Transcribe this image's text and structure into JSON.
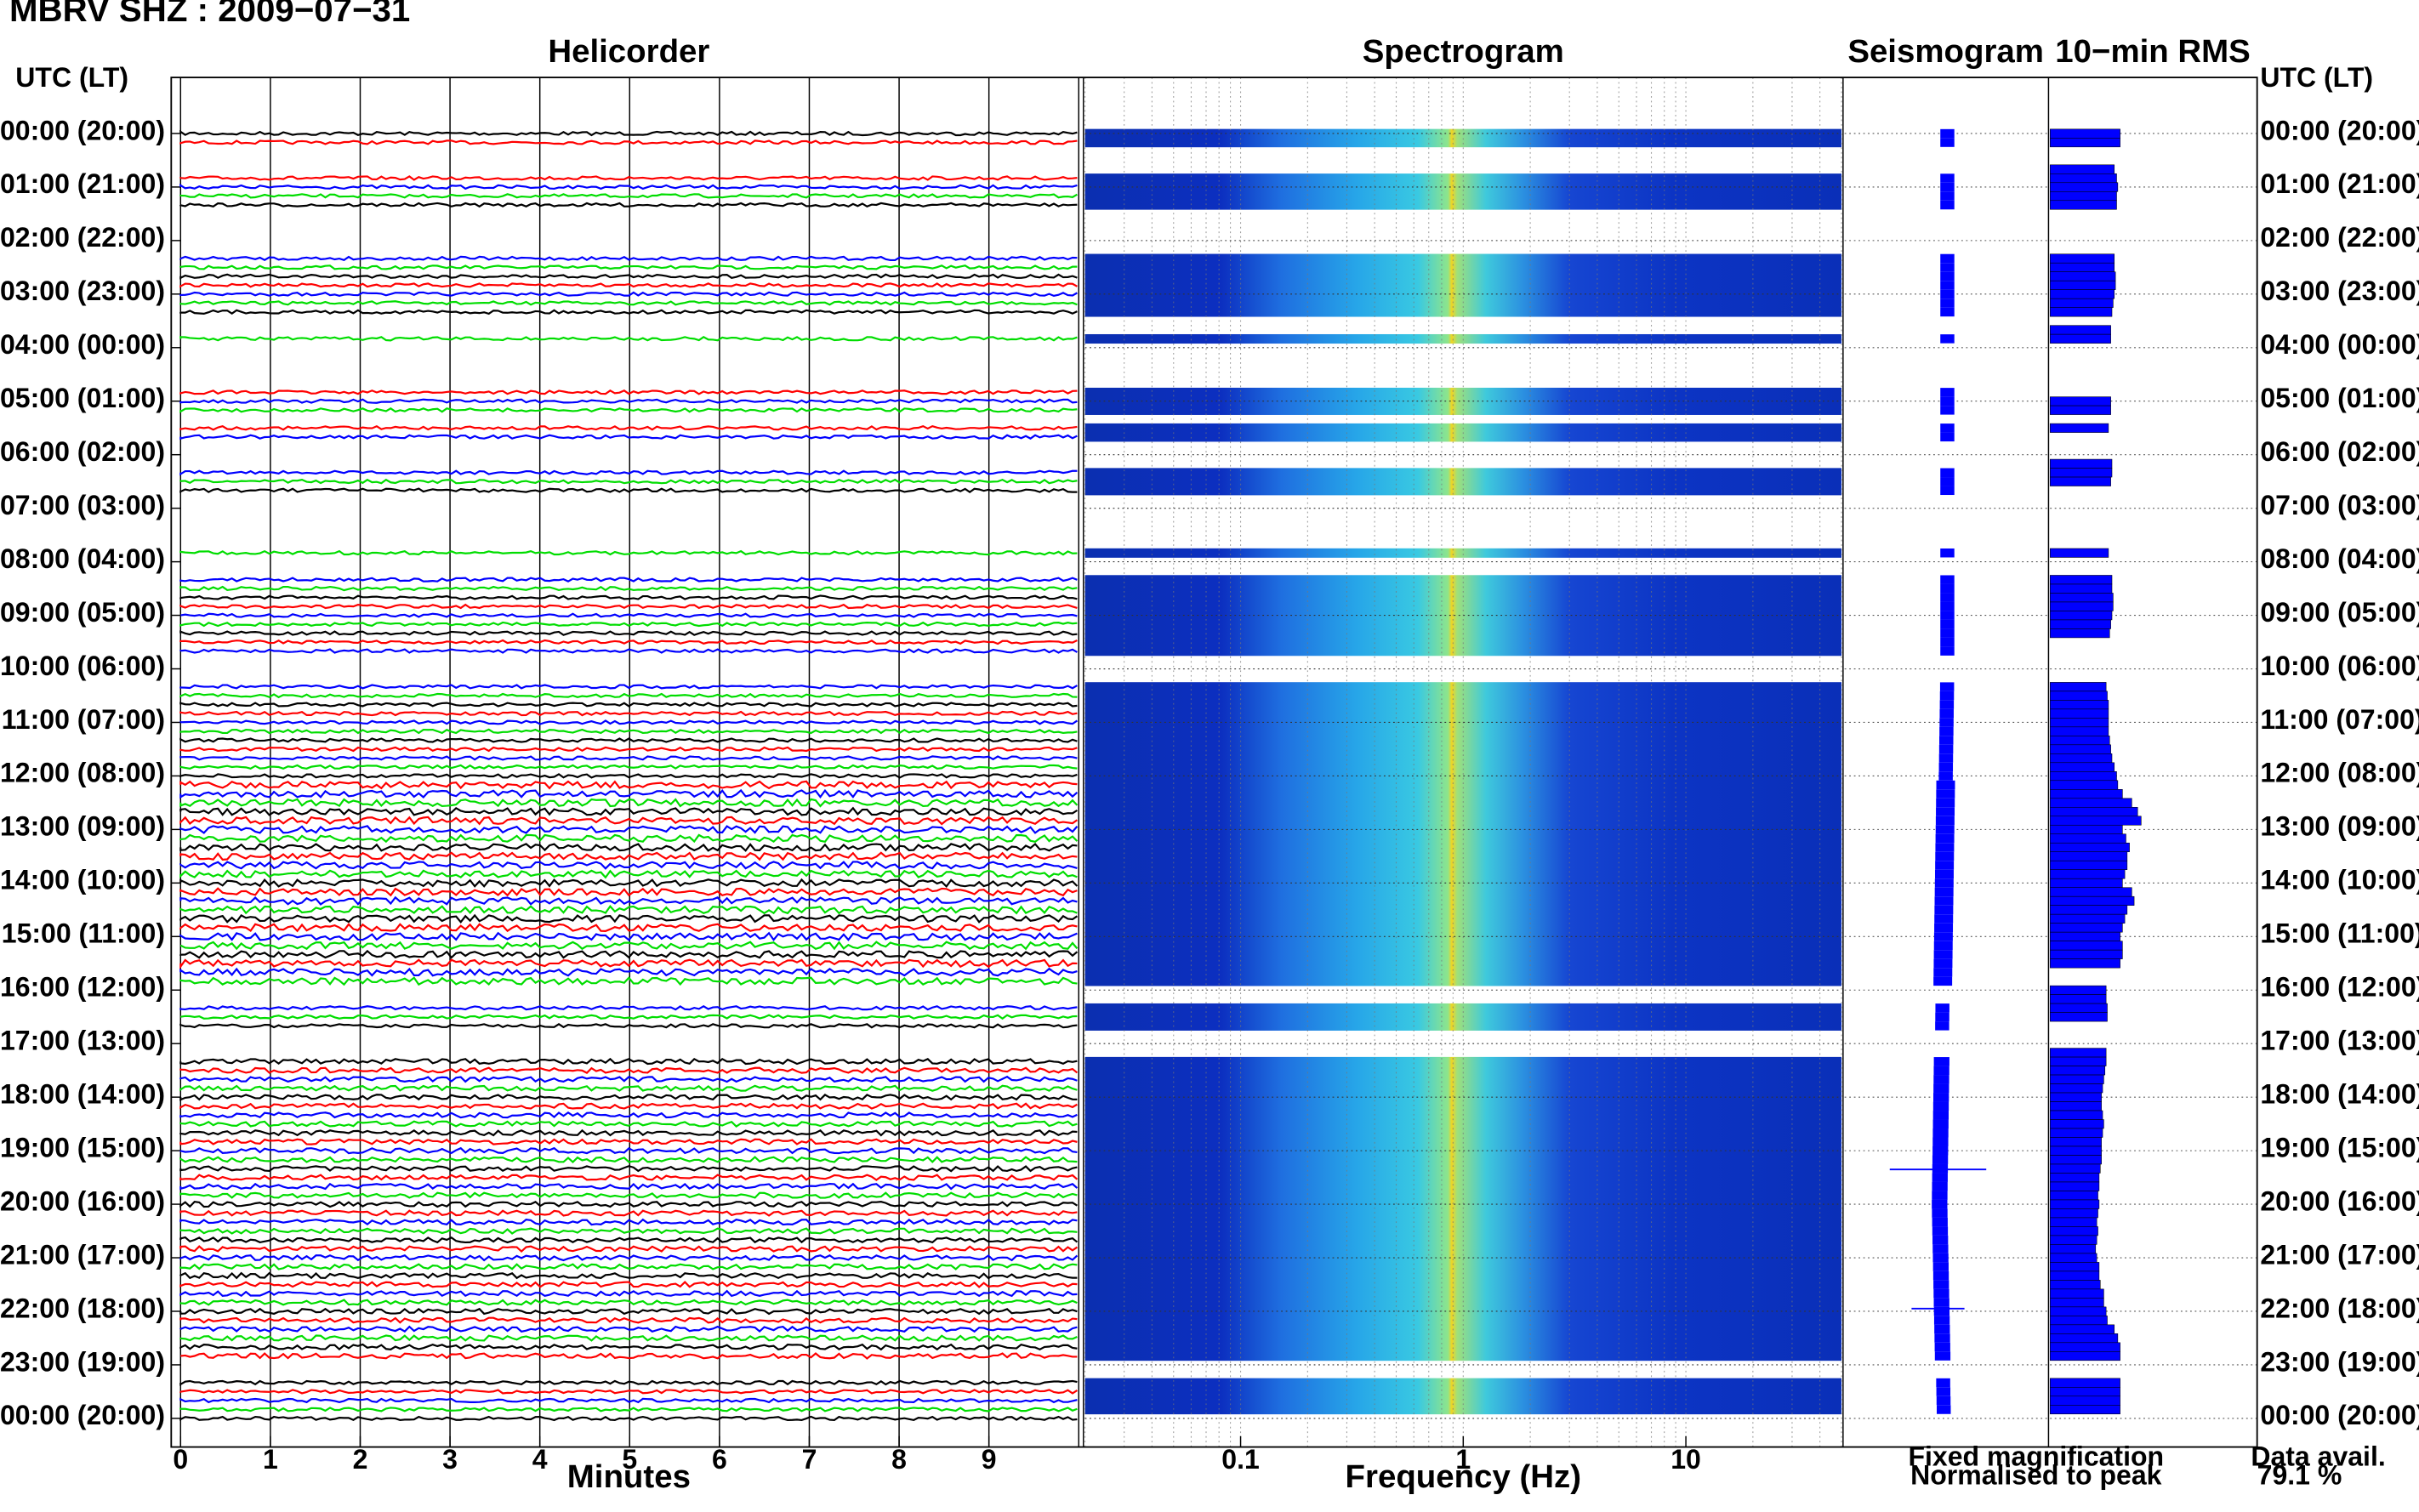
{
  "header": {
    "station_title": "MBRV SHZ : 2009−07−31",
    "utc_label_left": "UTC (LT)",
    "utc_label_right": "UTC (LT)"
  },
  "panels": {
    "helicorder_title": "Helicorder",
    "spectrogram_title": "Spectrogram",
    "seismogram_title": "Seismogram",
    "rms_title": "10−min RMS"
  },
  "axes": {
    "minutes_label": "Minutes",
    "frequency_label": "Frequency (Hz)",
    "minute_ticks": [
      "0",
      "1",
      "2",
      "3",
      "4",
      "5",
      "6",
      "7",
      "8",
      "9"
    ],
    "frequency_ticks": [
      "0.1",
      "1",
      "10"
    ],
    "hour_labels": [
      "00:00 (20:00)",
      "01:00 (21:00)",
      "02:00 (22:00)",
      "03:00 (23:00)",
      "04:00 (00:00)",
      "05:00 (01:00)",
      "06:00 (02:00)",
      "07:00 (03:00)",
      "08:00 (04:00)",
      "09:00 (05:00)",
      "10:00 (06:00)",
      "11:00 (07:00)",
      "12:00 (08:00)",
      "13:00 (09:00)",
      "14:00 (10:00)",
      "15:00 (11:00)",
      "16:00 (12:00)",
      "17:00 (13:00)",
      "18:00 (14:00)",
      "19:00 (15:00)",
      "20:00 (16:00)",
      "21:00 (17:00)",
      "22:00 (18:00)",
      "23:00 (19:00)",
      "00:00 (20:00)"
    ]
  },
  "legend": {
    "fixed_magnification": "Fixed magnification",
    "normalised_to_peak": "Normalised to peak",
    "data_avail_label": "Data avail.",
    "data_avail_value": "79.1 %"
  },
  "colors": {
    "trace_cycle": [
      "#000000",
      "#ff0000",
      "#0000ff",
      "#00dd00"
    ],
    "fixed_magnification": "#0000ff",
    "normalised_to_peak": "#ff0000",
    "spectrogram_background": "#0a2fb8",
    "rms_bar": "#0000ff"
  },
  "chart_data": {
    "type": "heatmap",
    "description_panels": [
      "helicorder",
      "spectrogram",
      "seismogram",
      "rms"
    ],
    "helicorder": {
      "minutes_per_line": 10,
      "minutes_range": [
        0,
        10
      ],
      "hours_range": [
        0,
        24
      ],
      "trace_color_cycle": [
        "black",
        "red",
        "blue",
        "green"
      ]
    },
    "spectrogram": {
      "frequency_scale": "log",
      "frequency_range_hz": [
        0.02,
        50
      ],
      "dominant_frequency_hz": 1
    },
    "data_gaps_hours": [
      [
        0.33,
        0.67
      ],
      [
        1.5,
        2.33
      ],
      [
        3.5,
        3.83
      ],
      [
        4.0,
        4.83
      ],
      [
        5.17,
        5.5
      ],
      [
        5.67,
        6.17
      ],
      [
        6.83,
        7.83
      ],
      [
        8.0,
        8.33
      ],
      [
        9.83,
        10.33
      ],
      [
        16.0,
        16.33
      ],
      [
        16.83,
        17.33
      ],
      [
        23.0,
        23.33
      ]
    ],
    "rms_10min": {
      "x_unit": "relative",
      "values": [
        0.6,
        0.6,
        0.0,
        0.0,
        0.55,
        0.57,
        0.58,
        0.57,
        0.57,
        0.0,
        0.0,
        0.0,
        0.0,
        0.0,
        0.55,
        0.55,
        0.56,
        0.56,
        0.55,
        0.54,
        0.53,
        0.0,
        0.52,
        0.52,
        0.0,
        0.0,
        0.0,
        0.0,
        0.0,
        0.0,
        0.52,
        0.52,
        0.0,
        0.5,
        0.0,
        0.0,
        0.0,
        0.53,
        0.53,
        0.52,
        0.0,
        0.0,
        0.0,
        0.0,
        0.0,
        0.0,
        0.0,
        0.5,
        0.0,
        0.0,
        0.53,
        0.53,
        0.54,
        0.54,
        0.53,
        0.52,
        0.51,
        0.0,
        0.0,
        0.0,
        0.0,
        0.0,
        0.48,
        0.49,
        0.5,
        0.5,
        0.5,
        0.5,
        0.51,
        0.52,
        0.53,
        0.55,
        0.57,
        0.58,
        0.62,
        0.7,
        0.75,
        0.78,
        0.62,
        0.65,
        0.68,
        0.66,
        0.66,
        0.64,
        0.62,
        0.7,
        0.72,
        0.66,
        0.64,
        0.62,
        0.6,
        0.62,
        0.62,
        0.6,
        0.0,
        0.0,
        0.48,
        0.48,
        0.49,
        0.49,
        0.0,
        0.0,
        0.0,
        0.48,
        0.48,
        0.47,
        0.46,
        0.45,
        0.44,
        0.44,
        0.45,
        0.46,
        0.45,
        0.44,
        0.44,
        0.44,
        0.43,
        0.42,
        0.42,
        0.41,
        0.42,
        0.41,
        0.4,
        0.41,
        0.4,
        0.39,
        0.4,
        0.42,
        0.42,
        0.43,
        0.46,
        0.46,
        0.48,
        0.49,
        0.55,
        0.58,
        0.6,
        0.6,
        0.0,
        0.0,
        0.6,
        0.6,
        0.6,
        0.6
      ]
    }
  }
}
